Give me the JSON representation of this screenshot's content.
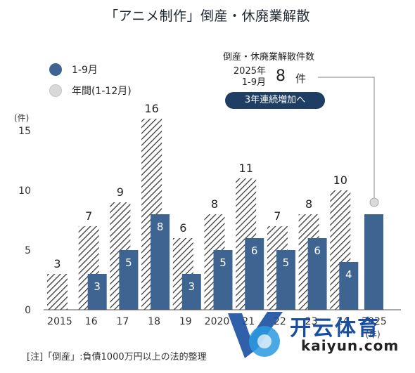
{
  "title": "「アニメ制作」倒産・休廃業解散",
  "legend": [
    {
      "label": "1-9月",
      "color": "#3e6592"
    },
    {
      "label": "年間(1-12月)",
      "color": "#d9d9d9"
    }
  ],
  "callout": {
    "heading": "倒産・休廃業解散件数",
    "period_line1": "2025年",
    "period_line2": "1-9月",
    "value": "8",
    "unit": "件",
    "pill": "3年連続増加へ"
  },
  "note": "[注]「倒産」:負債1000万円以上の法的整理",
  "watermark": {
    "brand": "开云体育",
    "url": "kaiyun.com"
  },
  "chart_data": {
    "type": "bar",
    "ylabel": "(件)",
    "xlabel": "(年)",
    "ylim": [
      0,
      15
    ],
    "yticks": [
      "0",
      "5",
      "10",
      "15"
    ],
    "categories": [
      "2015",
      "16",
      "17",
      "18",
      "19",
      "2020",
      "21",
      "22",
      "23",
      "24",
      "2025"
    ],
    "series": [
      {
        "name": "年間(1-12月)",
        "color": "#d9d9d9",
        "pattern": "hatch",
        "values": [
          3,
          7,
          9,
          16,
          6,
          8,
          11,
          7,
          8,
          10,
          null
        ]
      },
      {
        "name": "1-9月",
        "color": "#3e6592",
        "values": [
          null,
          3,
          5,
          8,
          3,
          5,
          6,
          5,
          6,
          4,
          8
        ]
      }
    ],
    "projection_marker": {
      "category": "2025",
      "value": 9
    }
  }
}
